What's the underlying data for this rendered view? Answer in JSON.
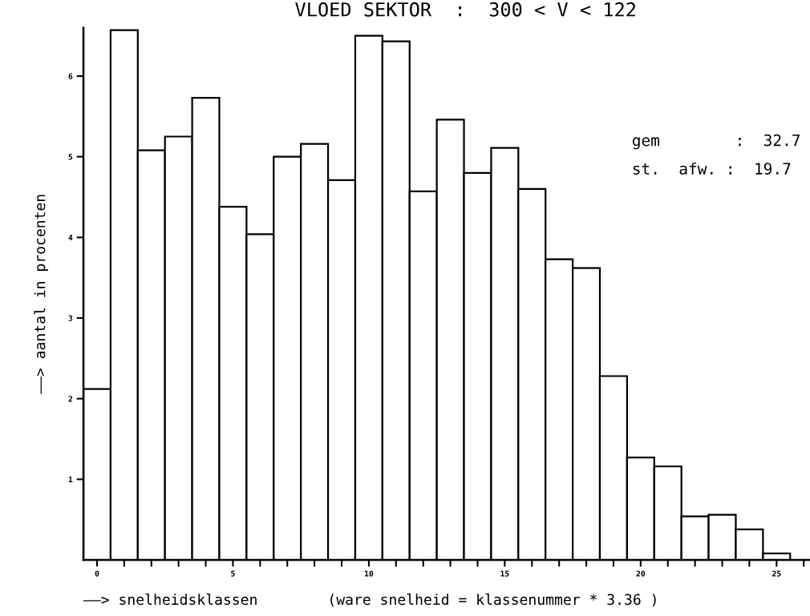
{
  "chart_data": {
    "type": "histogram",
    "title": "VLOED SEKTOR  :  300 < V < 122",
    "xlabel": "——> snelheidsklassen        (ware snelheid = klassenummer * 3.36 )",
    "ylabel": "——> aantal in procenten",
    "annotations": [
      "gem        :  32.7",
      "st.  afw. :  19.7"
    ],
    "bins": [
      -0.5,
      0.5,
      1.5,
      2.5,
      3.5,
      4.5,
      5.5,
      6.5,
      7.5,
      8.5,
      9.5,
      10.5,
      11.5,
      12.5,
      13.5,
      14.5,
      15.5,
      16.5,
      17.5,
      18.5,
      19.5,
      20.5,
      21.5,
      22.5,
      23.5,
      24.5,
      25.5
    ],
    "values": [
      2.12,
      6.57,
      5.08,
      5.25,
      5.73,
      4.38,
      4.04,
      5.0,
      5.16,
      4.71,
      6.5,
      6.43,
      4.57,
      5.46,
      4.8,
      5.11,
      4.6,
      3.73,
      3.62,
      2.28,
      1.27,
      1.16,
      0.54,
      0.56,
      0.38,
      0.08
    ],
    "color": "#ffffff",
    "xlim": [
      -0.5,
      26.2
    ],
    "xticks": [
      0,
      {
        "value": 1,
        "label": null
      },
      {
        "value": 2,
        "label": null
      },
      {
        "value": 3,
        "label": null
      },
      {
        "value": 4,
        "label": null
      },
      5,
      {
        "value": 6,
        "label": null
      },
      {
        "value": 7,
        "label": null
      },
      {
        "value": 8,
        "label": null
      },
      {
        "value": 9,
        "label": null
      },
      10,
      {
        "value": 11,
        "label": null
      },
      {
        "value": 12,
        "label": null
      },
      {
        "value": 13,
        "label": null
      },
      {
        "value": 14,
        "label": null
      },
      15,
      {
        "value": 16,
        "label": null
      },
      {
        "value": 17,
        "label": null
      },
      {
        "value": 18,
        "label": null
      },
      {
        "value": 19,
        "label": null
      },
      20,
      {
        "value": 21,
        "label": null
      },
      {
        "value": 22,
        "label": null
      },
      {
        "value": 23,
        "label": null
      },
      {
        "value": 24,
        "label": null
      },
      25,
      {
        "value": 26,
        "label": null
      }
    ],
    "ylim": [
      0,
      6.6
    ],
    "yticks": [
      1,
      2,
      3,
      4,
      5,
      6
    ],
    "grid": false,
    "legend": false
  }
}
